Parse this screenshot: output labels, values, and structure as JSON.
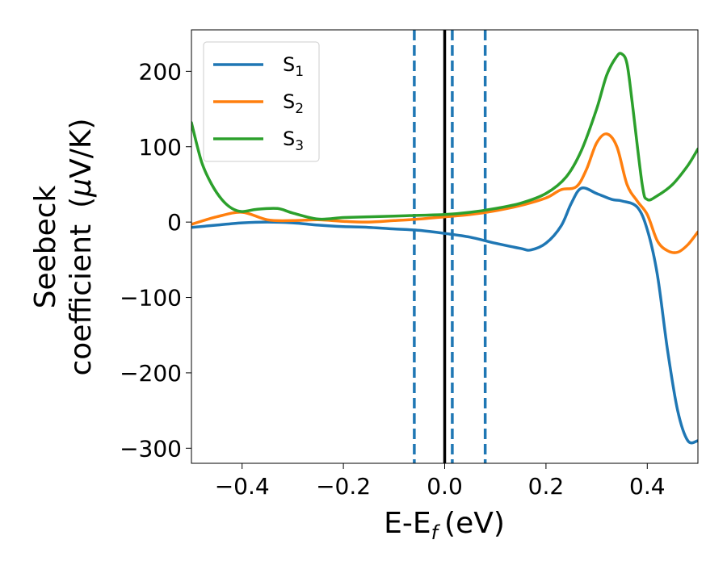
{
  "chart_data": {
    "type": "line",
    "title": "",
    "xlabel": "E-E",
    "xlabel_sub": "f",
    "xlabel_unit": "(eV)",
    "ylabel_line1": "Seebeck",
    "ylabel_line2": "coefficient",
    "ylabel_unit_pre": "(",
    "ylabel_unit_mu": "μ",
    "ylabel_unit_post": "V/K)",
    "xlim": [
      -0.5,
      0.5
    ],
    "ylim": [
      -320,
      255
    ],
    "xticks": [
      -0.4,
      -0.2,
      0.0,
      0.2,
      0.4
    ],
    "xtick_labels": [
      "−0.4",
      "−0.2",
      "0.0",
      "0.2",
      "0.4"
    ],
    "yticks": [
      200,
      100,
      0,
      -100,
      -200,
      -300
    ],
    "ytick_labels": [
      "200",
      "100",
      "0",
      "−100",
      "−200",
      "−300"
    ],
    "grid": false,
    "legend_position": "top-left",
    "vlines": [
      {
        "x": -0.06,
        "style": "dashed",
        "color": "#1f77b4"
      },
      {
        "x": 0.0,
        "style": "solid",
        "color": "#000000"
      },
      {
        "x": 0.015,
        "style": "dashed",
        "color": "#1f77b4"
      },
      {
        "x": 0.08,
        "style": "dashed",
        "color": "#1f77b4"
      }
    ],
    "series": [
      {
        "name": "S",
        "subscript": "1",
        "color": "#1f77b4",
        "x": [
          -0.5,
          -0.45,
          -0.4,
          -0.35,
          -0.3,
          -0.25,
          -0.2,
          -0.15,
          -0.1,
          -0.05,
          0.0,
          0.05,
          0.1,
          0.15,
          0.17,
          0.2,
          0.23,
          0.25,
          0.27,
          0.3,
          0.33,
          0.35,
          0.38,
          0.4,
          0.42,
          0.44,
          0.46,
          0.48,
          0.5
        ],
        "y": [
          -7,
          -4,
          -1,
          0,
          -1,
          -4,
          -6,
          -7,
          -9,
          -11,
          -15,
          -20,
          -28,
          -35,
          -37,
          -28,
          -5,
          25,
          45,
          38,
          30,
          28,
          20,
          -10,
          -70,
          -170,
          -250,
          -290,
          -290
        ]
      },
      {
        "name": "S",
        "subscript": "2",
        "color": "#ff7f0e",
        "x": [
          -0.5,
          -0.45,
          -0.4,
          -0.35,
          -0.3,
          -0.25,
          -0.2,
          -0.15,
          -0.1,
          -0.05,
          0.0,
          0.05,
          0.1,
          0.15,
          0.2,
          0.23,
          0.26,
          0.28,
          0.3,
          0.32,
          0.34,
          0.36,
          0.38,
          0.4,
          0.42,
          0.44,
          0.46,
          0.48,
          0.5
        ],
        "y": [
          -3,
          7,
          13,
          3,
          2,
          3,
          1,
          0,
          2,
          4,
          7,
          10,
          15,
          22,
          32,
          43,
          47,
          70,
          105,
          117,
          100,
          50,
          28,
          10,
          -25,
          -38,
          -40,
          -30,
          -13
        ]
      },
      {
        "name": "S",
        "subscript": "3",
        "color": "#2ca02c",
        "x": [
          -0.5,
          -0.48,
          -0.46,
          -0.44,
          -0.42,
          -0.4,
          -0.37,
          -0.33,
          -0.3,
          -0.25,
          -0.2,
          -0.15,
          -0.1,
          -0.05,
          0.0,
          0.05,
          0.1,
          0.15,
          0.2,
          0.24,
          0.27,
          0.3,
          0.32,
          0.34,
          0.35,
          0.36,
          0.37,
          0.39,
          0.4,
          0.42,
          0.45,
          0.48,
          0.5
        ],
        "y": [
          132,
          80,
          50,
          30,
          18,
          14,
          17,
          18,
          12,
          4,
          6,
          7,
          8,
          9,
          10,
          13,
          18,
          25,
          38,
          60,
          95,
          150,
          195,
          220,
          223,
          210,
          160,
          50,
          30,
          35,
          50,
          75,
          97
        ]
      }
    ]
  }
}
